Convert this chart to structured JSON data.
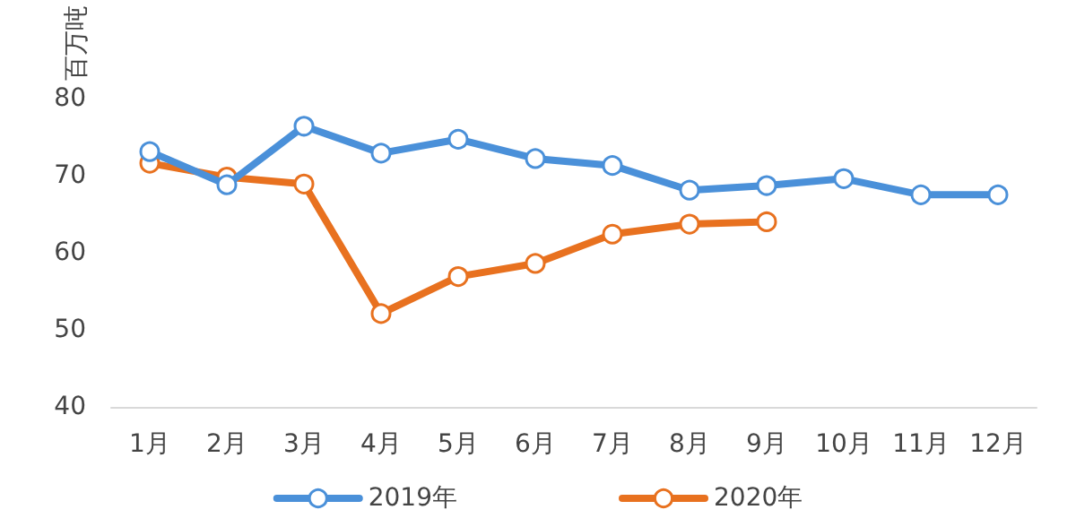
{
  "chart_data": {
    "type": "line",
    "ylabel": "百万吨",
    "categories": [
      "1月",
      "2月",
      "3月",
      "4月",
      "5月",
      "6月",
      "7月",
      "8月",
      "9月",
      "10月",
      "11月",
      "12月"
    ],
    "series": [
      {
        "name": "2019年",
        "color": "#4a90d9",
        "values": [
          73.1,
          68.8,
          76.4,
          72.9,
          74.7,
          72.2,
          71.3,
          68.1,
          68.7,
          69.6,
          67.5,
          67.5
        ]
      },
      {
        "name": "2020年",
        "color": "#e8711f",
        "values": [
          71.6,
          69.8,
          68.9,
          52.1,
          56.9,
          58.6,
          62.4,
          63.7,
          64.0,
          null,
          null,
          null
        ]
      }
    ],
    "ylim": [
      40,
      80
    ],
    "yticks": [
      40,
      50,
      60,
      70,
      80
    ],
    "grid": false,
    "legend": "bottom",
    "marker": "circle",
    "line_style": "solid"
  }
}
